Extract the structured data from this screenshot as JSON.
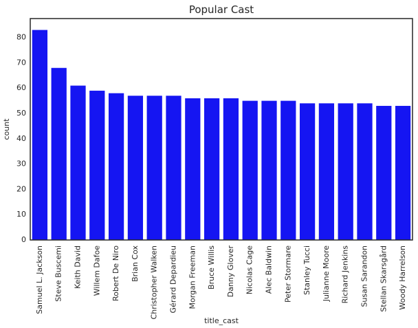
{
  "chart_data": {
    "type": "bar",
    "title": "Popular Cast",
    "xlabel": "title_cast",
    "ylabel": "count",
    "ylim": [
      0,
      87.5
    ],
    "yticks": [
      0,
      10,
      20,
      30,
      40,
      50,
      60,
      70,
      80
    ],
    "grid": false,
    "bar_color": "#1515f2",
    "categories": [
      "Samuel L. Jackson",
      "Steve Buscemi",
      "Keith David",
      "Willem Dafoe",
      "Robert De Niro",
      "Brian Cox",
      "Christopher Walken",
      "Gérard Depardieu",
      "Morgan Freeman",
      "Bruce Willis",
      "Danny Glover",
      "Nicolas Cage",
      "Alec Baldwin",
      "Peter Stormare",
      "Stanley Tucci",
      "Julianne Moore",
      "Richard Jenkins",
      "Susan Sarandon",
      "Stellan Skarsgård",
      "Woody Harrelson"
    ],
    "values": [
      83,
      68,
      61,
      59,
      58,
      57,
      57,
      57,
      56,
      56,
      56,
      55,
      55,
      55,
      54,
      54,
      54,
      54,
      53,
      53
    ]
  }
}
